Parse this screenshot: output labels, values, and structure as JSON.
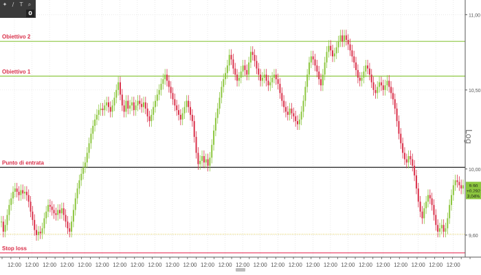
{
  "toolbar": {
    "icons": [
      "arrow-icon",
      "pencil-icon",
      "text-icon",
      "zoom-icon"
    ],
    "glyphs": [
      "✦",
      "∕",
      "T",
      "⌕"
    ],
    "counter": "0"
  },
  "scale_mode": "Log",
  "chart_data": {
    "type": "candlestick",
    "title": "",
    "xlabel": "",
    "ylabel": "",
    "y_scale": "log",
    "ylim": [
      9.47,
      11.1
    ],
    "grid": true,
    "y_ticks": [
      {
        "value": 11.0,
        "label": "11,00"
      },
      {
        "value": 10.5,
        "label": "10,50"
      },
      {
        "value": 10.0,
        "label": "10,00"
      },
      {
        "value": 9.6,
        "label": "9,60"
      }
    ],
    "x_tick_labels": [
      "12:00",
      "12:00",
      "12:00",
      "12:00",
      "12:00",
      "12:00",
      "12:00",
      "12:00",
      "12:00",
      "12:00",
      "12:00",
      "12:00",
      "12:00",
      "12:00",
      "12:00",
      "12:00",
      "12:00",
      "12:00",
      "12:00",
      "12:00",
      "12:00",
      "12:00",
      "12:00",
      "12:00",
      "12:00",
      "12:00"
    ],
    "levels": [
      {
        "name": "Obiettivo 2",
        "value": 10.82,
        "color": "#8cc63f",
        "style": "solid"
      },
      {
        "name": "Obiettivo 1",
        "value": 10.59,
        "color": "#8cc63f",
        "style": "solid"
      },
      {
        "name": "Punto di entrata",
        "value": 10.01,
        "color": "#222222",
        "style": "solid"
      },
      {
        "name": "",
        "value": 9.605,
        "color": "#e8d35a",
        "style": "dotted"
      },
      {
        "name": "Stop loss",
        "value": 9.495,
        "color": "#e8335a",
        "style": "solid"
      }
    ],
    "price_labels": [
      {
        "label": "9,90",
        "value": 9.9,
        "color": "#8cc63f"
      },
      {
        "label": "+0,292",
        "value": 9.868,
        "color": "#8cc63f"
      },
      {
        "label": "3,04%",
        "value": 9.836,
        "color": "#8cc63f"
      }
    ],
    "up_color": "#8cc63f",
    "down_color": "#d9304a",
    "series": [
      {
        "values": [
          9.68,
          9.62,
          9.66,
          9.72,
          9.78,
          9.82,
          9.86,
          9.88,
          9.86,
          9.84,
          9.87,
          9.85,
          9.86,
          9.84,
          9.8,
          9.74,
          9.69,
          9.63,
          9.6,
          9.62,
          9.61,
          9.64,
          9.7,
          9.74,
          9.78,
          9.77,
          9.75,
          9.73,
          9.72,
          9.75,
          9.73,
          9.76,
          9.72,
          9.68,
          9.64,
          9.62,
          9.68,
          9.75,
          9.82,
          9.88,
          9.93,
          9.97,
          10.01,
          10.04,
          10.1,
          10.16,
          10.22,
          10.27,
          10.31,
          10.34,
          10.37,
          10.38,
          10.37,
          10.4,
          10.42,
          10.39,
          10.36,
          10.4,
          10.45,
          10.5,
          10.55,
          10.47,
          10.4,
          10.36,
          10.43,
          10.38,
          10.4,
          10.42,
          10.37,
          10.4,
          10.43,
          10.41,
          10.39,
          10.42,
          10.38,
          10.33,
          10.3,
          10.34,
          10.39,
          10.43,
          10.47,
          10.5,
          10.54,
          10.57,
          10.6,
          10.56,
          10.52,
          10.48,
          10.44,
          10.4,
          10.37,
          10.34,
          10.31,
          10.35,
          10.39,
          10.43,
          10.39,
          10.34,
          10.3,
          10.2,
          10.1,
          10.03,
          10.05,
          10.08,
          10.04,
          10.06,
          10.02,
          10.07,
          10.15,
          10.24,
          10.32,
          10.38,
          10.45,
          10.52,
          10.57,
          10.61,
          10.66,
          10.73,
          10.7,
          10.64,
          10.6,
          10.56,
          10.58,
          10.62,
          10.66,
          10.63,
          10.6,
          10.68,
          10.75,
          10.73,
          10.69,
          10.64,
          10.6,
          10.56,
          10.58,
          10.6,
          10.56,
          10.53,
          10.55,
          10.58,
          10.6,
          10.57,
          10.54,
          10.48,
          10.43,
          10.39,
          10.36,
          10.34,
          10.38,
          10.35,
          10.33,
          10.3,
          10.28,
          10.31,
          10.36,
          10.43,
          10.52,
          10.6,
          10.68,
          10.72,
          10.7,
          10.66,
          10.62,
          10.57,
          10.53,
          10.6,
          10.68,
          10.75,
          10.79,
          10.76,
          10.72,
          10.74,
          10.78,
          10.82,
          10.86,
          10.82,
          10.86,
          10.83,
          10.8,
          10.76,
          10.72,
          10.68,
          10.63,
          10.58,
          10.56,
          10.58,
          10.62,
          10.66,
          10.64,
          10.6,
          10.55,
          10.5,
          10.48,
          10.52,
          10.55,
          10.53,
          10.5,
          10.53,
          10.56,
          10.52,
          10.48,
          10.44,
          10.38,
          10.3,
          10.22,
          10.16,
          10.1,
          10.06,
          10.04,
          10.08,
          10.06,
          10.02,
          9.96,
          9.88,
          9.8,
          9.74,
          9.7,
          9.76,
          9.8,
          9.84,
          9.82,
          9.78,
          9.72,
          9.66,
          9.62,
          9.64,
          9.66,
          9.62,
          9.64,
          9.7,
          9.78,
          9.84,
          9.9,
          9.93,
          9.92,
          9.9,
          9.88,
          9.9
        ]
      }
    ]
  }
}
